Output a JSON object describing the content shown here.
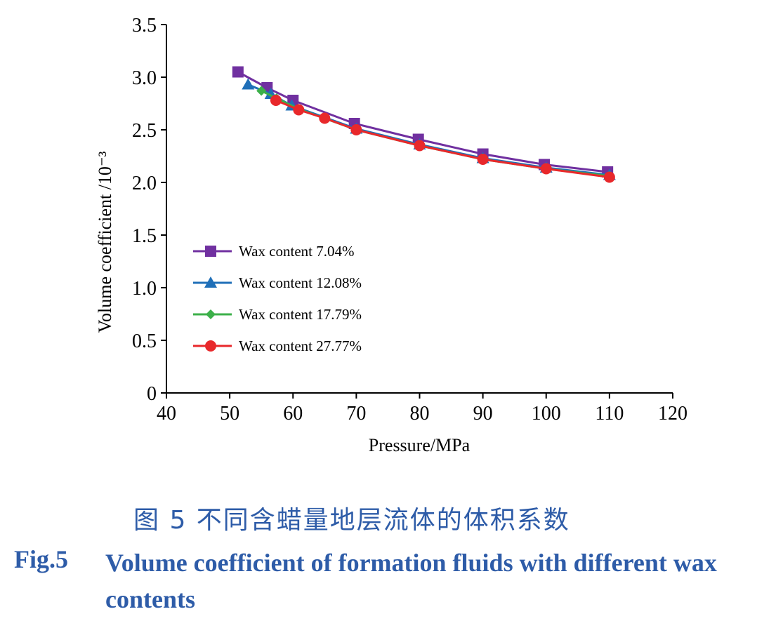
{
  "chart_data": {
    "type": "line",
    "xlabel": "Pressure/MPa",
    "ylabel": "Volume coefficient /10⁻³",
    "xlim": [
      40,
      120
    ],
    "ylim": [
      0,
      3.5
    ],
    "xticks": [
      "40",
      "50",
      "60",
      "70",
      "80",
      "90",
      "100",
      "110",
      "120"
    ],
    "yticks": [
      "0",
      "0.5",
      "1.0",
      "1.5",
      "2.0",
      "2.5",
      "3.0",
      "3.5"
    ],
    "grid": false,
    "legend_position": "left-center",
    "series": [
      {
        "name": "Wax content 7.04%",
        "color": "#7030a0",
        "marker": "square",
        "x": [
          51.3,
          55.9,
          60.0,
          69.7,
          79.8,
          90.0,
          99.7,
          109.7
        ],
        "y": [
          3.05,
          2.9,
          2.78,
          2.56,
          2.41,
          2.27,
          2.17,
          2.1
        ]
      },
      {
        "name": "Wax content 12.08%",
        "color": "#1f6fb8",
        "marker": "triangle",
        "x": [
          52.9,
          56.5,
          59.8,
          70.0,
          80.0,
          90.0,
          100.0,
          110.0
        ],
        "y": [
          2.93,
          2.84,
          2.73,
          2.51,
          2.36,
          2.23,
          2.14,
          2.07
        ]
      },
      {
        "name": "Wax content 17.79%",
        "color": "#3cb04a",
        "marker": "diamond",
        "x": [
          55.0,
          57.4,
          60.8,
          70.0,
          80.0,
          90.0,
          100.0,
          110.0
        ],
        "y": [
          2.87,
          2.8,
          2.7,
          2.5,
          2.35,
          2.22,
          2.13,
          2.06
        ]
      },
      {
        "name": "Wax content 27.77%",
        "color": "#e8282b",
        "marker": "circle",
        "x": [
          57.3,
          60.9,
          65.0,
          70.0,
          80.0,
          90.0,
          100.0,
          110.0
        ],
        "y": [
          2.78,
          2.69,
          2.61,
          2.5,
          2.35,
          2.22,
          2.13,
          2.05
        ]
      }
    ]
  },
  "caption": {
    "cn": "图 5   不同含蜡量地层流体的体积系数",
    "en_label": "Fig.5",
    "en_text": "Volume coefficient of formation fluids with different wax contents"
  }
}
